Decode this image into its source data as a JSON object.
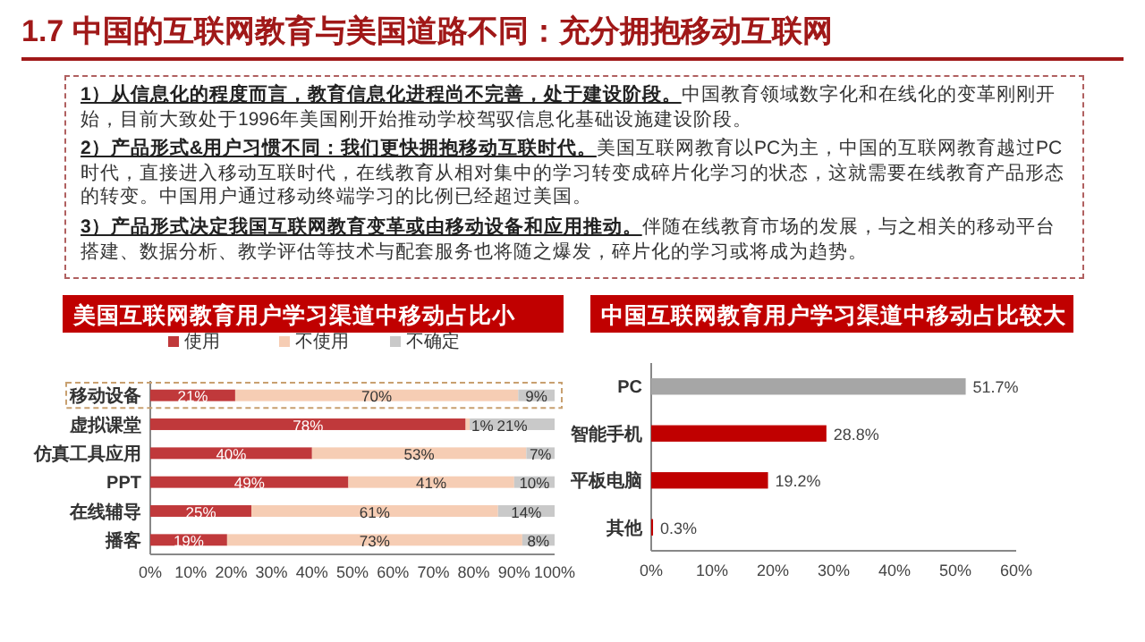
{
  "chart_data": [
    {
      "type": "other",
      "title": "1.7 中国的互联网教育与美国道路不同：充分拥抱移动互联网",
      "annotations": [
        "1）从信息化的程度而言，教育信息化进程尚不完善，处于建设阶段。",
        "中国教育领域数字化和在线化的变革刚刚开始，目前大致处于1996年美国刚开始推动学校驾驭信息化基础设施建设阶段。",
        "2）产品形式&用户习惯不同：我们更快拥抱移动互联时代。",
        "美国互联网教育以PC为主，中国的互联网教育越过PC时代，直接进入移动互联时代，在线教育从相对集中的学习转变成碎片化学习的状态，这就需要在线教育产品形态的转变。中国用户通过移动终端学习的比例已经超过美国。",
        "3）产品形式决定我国互联网教育变革或由移动设备和应用推动。",
        "伴随在线教育市场的发展，与之相关的移动平台搭建、数据分析、教学评估等技术与配套服务也将随之爆发，碎片化的学习或将成为趋势。"
      ]
    },
    {
      "type": "bar",
      "orientation": "horizontal",
      "stacked": true,
      "title": "美国互联网教育用户学习渠道中移动占比小",
      "legend": "top",
      "categories": [
        "移动设备",
        "虚拟课堂",
        "仿真工具应用",
        "PPT",
        "在线辅导",
        "播客"
      ],
      "series": [
        {
          "name": "使用",
          "color": "#c0393b",
          "values": [
            21,
            78,
            40,
            49,
            25,
            19
          ],
          "value_labels": [
            "21%",
            "78%",
            "40%",
            "49%",
            "25%",
            "19%"
          ]
        },
        {
          "name": "不使用",
          "color": "#f6cdb4",
          "values": [
            70,
            1,
            53,
            41,
            61,
            73
          ],
          "value_labels": [
            "70%",
            "1%",
            "53%",
            "41%",
            "61%",
            "73%"
          ]
        },
        {
          "name": "不确定",
          "color": "#c9c9c9",
          "values": [
            9,
            21,
            7,
            10,
            14,
            8
          ],
          "value_labels": [
            "9%",
            "21%",
            "7%",
            "10%",
            "14%",
            "8%"
          ]
        }
      ],
      "xlim": [
        0,
        100
      ],
      "xticks": [
        {
          "value": 0,
          "label": "0%"
        },
        {
          "value": 10,
          "label": "10%"
        },
        {
          "value": 20,
          "label": "20%"
        },
        {
          "value": 30,
          "label": "30%"
        },
        {
          "value": 40,
          "label": "40%"
        },
        {
          "value": 50,
          "label": "50%"
        },
        {
          "value": 60,
          "label": "60%"
        },
        {
          "value": 70,
          "label": "70%"
        },
        {
          "value": 80,
          "label": "80%"
        },
        {
          "value": 90,
          "label": "90%"
        },
        {
          "value": 100,
          "label": "100%"
        }
      ]
    },
    {
      "type": "bar",
      "orientation": "horizontal",
      "title": "中国互联网教育用户学习渠道中移动占比较大",
      "categories": [
        "PC",
        "智能手机",
        "平板电脑",
        "其他"
      ],
      "values": [
        51.7,
        28.8,
        19.2,
        0.3
      ],
      "value_labels": [
        "51.7%",
        "28.8%",
        "19.2%",
        "0.3%"
      ],
      "colors": [
        "#a6a6a6",
        "#c00000",
        "#c00000",
        "#c00000"
      ],
      "xlim": [
        0,
        60
      ],
      "xticks": [
        {
          "value": 0,
          "label": "0%"
        },
        {
          "value": 10,
          "label": "10%"
        },
        {
          "value": 20,
          "label": "20%"
        },
        {
          "value": 30,
          "label": "30%"
        },
        {
          "value": 40,
          "label": "40%"
        },
        {
          "value": 50,
          "label": "50%"
        },
        {
          "value": 60,
          "label": "60%"
        }
      ]
    }
  ]
}
